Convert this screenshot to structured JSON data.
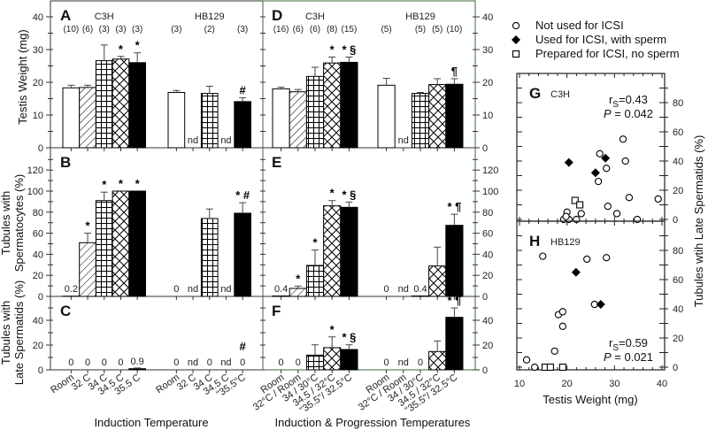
{
  "axis_titles": {
    "a_ylabel": "Testis Weight (mg)",
    "b_ylabel_1": "Tubules with",
    "b_ylabel_2": "Spermatocytes (%)",
    "c_ylabel_1": "Tubules with",
    "c_ylabel_2": "Late Spermatids (%)",
    "left_xlabel": "Induction Temperature",
    "mid_xlabel": "Induction & Progression Temperatures",
    "scatter_xlabel": "Testis Weight (mg)",
    "scatter_ylabel": "Tubules wtih Late Spermatids (%)"
  },
  "legend": [
    {
      "key": "not_used",
      "label": "Not used for ICSI"
    },
    {
      "key": "used",
      "label": "Used for ICSI, with sperm"
    },
    {
      "key": "prepared",
      "label": "Prepared for ICSI, no sperm"
    }
  ],
  "colors": {
    "bar_stroke": "#000000",
    "solid": "#000000",
    "frame_mid": "#3a6b3a"
  },
  "chart_data": [
    {
      "type": "bar",
      "panel": "A",
      "ylim": [
        0,
        40
      ],
      "yticks": [
        0,
        10,
        20,
        30,
        40
      ],
      "groups": [
        {
          "name": "C3H",
          "categories": [
            "Room",
            "32 C",
            "34 C",
            "34.5 C",
            "35.5 C"
          ],
          "bars": [
            {
              "n": "(10)",
              "value": 18.3,
              "err": 0.8,
              "fill": "open"
            },
            {
              "n": "(6)",
              "value": 18.4,
              "err": 0.7,
              "fill": "diag"
            },
            {
              "n": "(3)",
              "value": 26.6,
              "err": 4.8,
              "fill": "grid"
            },
            {
              "n": "(3)",
              "value": 27.1,
              "err": 0.8,
              "fill": "cross",
              "annot": "*"
            },
            {
              "n": "(3)",
              "value": 26.0,
              "err": 3.0,
              "fill": "solid",
              "annot": "*"
            }
          ]
        },
        {
          "name": "HB129",
          "categories": [
            "Room",
            "32 C",
            "34 C",
            "34.5 C",
            "\"35.5\"C"
          ],
          "bars": [
            {
              "n": "(3)",
              "value": 16.9,
              "err": 0.6,
              "fill": "open"
            },
            {
              "value": null,
              "label": "nd"
            },
            {
              "n": "(2)",
              "value": 16.6,
              "err": 2.2,
              "fill": "grid"
            },
            {
              "value": null,
              "label": "nd"
            },
            {
              "n": "(3)",
              "value": 14.1,
              "err": 1.2,
              "fill": "solid",
              "annot": "#"
            }
          ]
        }
      ]
    },
    {
      "type": "bar",
      "panel": "B",
      "ylim": [
        0,
        130
      ],
      "yticks": [
        0,
        20,
        40,
        60,
        80,
        100,
        120
      ],
      "groups": [
        {
          "name": "C3H",
          "bars": [
            {
              "value": 0.2,
              "err": 0,
              "fill": "open",
              "label": "0.2"
            },
            {
              "value": 51,
              "err": 9,
              "fill": "diag",
              "annot": "*"
            },
            {
              "value": 91,
              "err": 8,
              "fill": "grid",
              "annot": "*"
            },
            {
              "value": 100,
              "err": 0,
              "fill": "cross",
              "annot": "*"
            },
            {
              "value": 100,
              "err": 0,
              "fill": "solid",
              "annot": "*"
            }
          ]
        },
        {
          "name": "HB129",
          "bars": [
            {
              "value": 0,
              "err": 0,
              "fill": "open",
              "label": "0"
            },
            {
              "value": null,
              "label": "nd"
            },
            {
              "value": 74,
              "err": 9,
              "fill": "grid"
            },
            {
              "value": null,
              "label": "nd"
            },
            {
              "value": 79,
              "err": 10,
              "fill": "solid",
              "annot": "* #"
            }
          ]
        }
      ]
    },
    {
      "type": "bar",
      "panel": "C",
      "ylim": [
        0,
        55
      ],
      "yticks": [
        0,
        20,
        40
      ],
      "groups": [
        {
          "name": "C3H",
          "bars": [
            {
              "value": 0,
              "label": "0",
              "fill": "open"
            },
            {
              "value": 0,
              "label": "0",
              "fill": "diag"
            },
            {
              "value": 0,
              "label": "0",
              "fill": "grid"
            },
            {
              "value": 0,
              "label": "0",
              "fill": "cross"
            },
            {
              "value": 0.9,
              "err": 0.6,
              "label": "0.9",
              "fill": "solid"
            }
          ]
        },
        {
          "name": "HB129",
          "bars": [
            {
              "value": 0,
              "label": "0",
              "fill": "open"
            },
            {
              "value": null,
              "label": "nd"
            },
            {
              "value": 0,
              "label": "0",
              "fill": "grid"
            },
            {
              "value": null,
              "label": "nd"
            },
            {
              "value": 0,
              "label": "0",
              "fill": "solid",
              "annot": "#"
            }
          ]
        }
      ]
    },
    {
      "type": "bar",
      "panel": "D",
      "ylim": [
        0,
        40
      ],
      "yticks": [
        0,
        10,
        20,
        30,
        40
      ],
      "groups": [
        {
          "name": "C3H",
          "categories": [
            "Room",
            "32°C / Room",
            "34 / 30°C",
            "34.5 / 32°C",
            "\"35.5\"/ 32.5°C"
          ],
          "bars": [
            {
              "n": "(16)",
              "value": 18.0,
              "err": 0.5,
              "fill": "open"
            },
            {
              "n": "(6)",
              "value": 17.1,
              "err": 0.7,
              "fill": "diag"
            },
            {
              "n": "(6)",
              "value": 21.8,
              "err": 2.8,
              "fill": "grid"
            },
            {
              "n": "(8)",
              "value": 25.9,
              "err": 1.8,
              "fill": "cross",
              "annot": "*"
            },
            {
              "n": "(15)",
              "value": 26.1,
              "err": 1.6,
              "fill": "solid",
              "annot": "* §"
            }
          ]
        },
        {
          "name": "HB129",
          "categories": [
            "Room",
            "32°C / Room",
            "34 / 30°C",
            "34.5 / 32°C",
            "\"35.5\"/ 32.5°C"
          ],
          "bars": [
            {
              "n": "(5)",
              "value": 19.1,
              "err": 2.1,
              "fill": "open"
            },
            {
              "value": null,
              "label": "nd"
            },
            {
              "n": "(5)",
              "value": 16.6,
              "err": 0.3,
              "fill": "grid"
            },
            {
              "n": "(5)",
              "value": 19.3,
              "err": 1.8,
              "fill": "cross"
            },
            {
              "n": "(10)",
              "value": 19.4,
              "err": 1.7,
              "fill": "solid",
              "annot": "¶"
            }
          ]
        }
      ]
    },
    {
      "type": "bar",
      "panel": "E",
      "ylim": [
        0,
        130
      ],
      "yticks": [
        0,
        20,
        40,
        60,
        80,
        100,
        120
      ],
      "groups": [
        {
          "name": "C3H",
          "bars": [
            {
              "value": 0.4,
              "err": 0,
              "fill": "open",
              "label": "0.4"
            },
            {
              "value": 7.6,
              "err": 2.2,
              "fill": "diag",
              "annot": "*"
            },
            {
              "value": 29.4,
              "err": 14.6,
              "fill": "grid",
              "annot": "*"
            },
            {
              "value": 86,
              "err": 5,
              "fill": "cross",
              "annot": "*"
            },
            {
              "value": 84.6,
              "err": 5,
              "fill": "solid",
              "annot": "* §"
            }
          ]
        },
        {
          "name": "HB129",
          "bars": [
            {
              "value": 0,
              "fill": "open",
              "label": "0"
            },
            {
              "value": null,
              "label": "nd"
            },
            {
              "value": 0.4,
              "fill": "grid",
              "label": "0.4"
            },
            {
              "value": 28.9,
              "err": 17.9,
              "fill": "cross"
            },
            {
              "value": 67.5,
              "err": 10.5,
              "fill": "solid",
              "annot": "* ¶"
            }
          ]
        }
      ]
    },
    {
      "type": "bar",
      "panel": "F",
      "ylim": [
        0,
        55
      ],
      "yticks": [
        0,
        20,
        40
      ],
      "groups": [
        {
          "name": "C3H",
          "bars": [
            {
              "value": 0,
              "label": "0",
              "fill": "open"
            },
            {
              "value": 0,
              "label": "0",
              "fill": "diag"
            },
            {
              "value": 11.9,
              "err": 8.3,
              "fill": "grid"
            },
            {
              "value": 17.9,
              "err": 8.7,
              "fill": "cross",
              "annot": "*"
            },
            {
              "value": 16.4,
              "err": 3.8,
              "fill": "solid",
              "annot": "* §"
            }
          ]
        },
        {
          "name": "HB129",
          "bars": [
            {
              "value": 0,
              "label": "0",
              "fill": "open"
            },
            {
              "value": null,
              "label": "nd"
            },
            {
              "value": 0,
              "label": "0",
              "fill": "grid"
            },
            {
              "value": 14.8,
              "err": 8.5,
              "fill": "cross"
            },
            {
              "value": 42.4,
              "err": 7.6,
              "fill": "solid",
              "annot": "* ¶"
            }
          ]
        }
      ]
    },
    {
      "type": "scatter",
      "panel": "G",
      "strain": "C3H",
      "stat": "rS=0.43",
      "stat_r": "r",
      "stat_sub": "S",
      "stat_val": "=0.43",
      "p": "P",
      "p_val": " = 0.042",
      "xlim": [
        10,
        40
      ],
      "ylim": [
        0,
        100
      ],
      "yticks": [
        0,
        20,
        40,
        60,
        80
      ],
      "points": [
        {
          "x": 31.8,
          "y": 55,
          "kind": "not_used"
        },
        {
          "x": 26.9,
          "y": 45,
          "kind": "not_used"
        },
        {
          "x": 28.1,
          "y": 42,
          "kind": "used"
        },
        {
          "x": 20.4,
          "y": 39,
          "kind": "used"
        },
        {
          "x": 32.3,
          "y": 40,
          "kind": "not_used"
        },
        {
          "x": 28.3,
          "y": 35,
          "kind": "not_used"
        },
        {
          "x": 26.0,
          "y": 32,
          "kind": "used"
        },
        {
          "x": 26.6,
          "y": 26,
          "kind": "not_used"
        },
        {
          "x": 21.7,
          "y": 13,
          "kind": "prepared"
        },
        {
          "x": 22.7,
          "y": 10,
          "kind": "prepared"
        },
        {
          "x": 33.1,
          "y": 15,
          "kind": "not_used"
        },
        {
          "x": 39.2,
          "y": 14,
          "kind": "not_used"
        },
        {
          "x": 28.6,
          "y": 9,
          "kind": "not_used"
        },
        {
          "x": 30.5,
          "y": 4,
          "kind": "not_used"
        },
        {
          "x": 34.8,
          "y": 0,
          "kind": "not_used"
        },
        {
          "x": 20.0,
          "y": 5,
          "kind": "not_used"
        },
        {
          "x": 23.0,
          "y": 4,
          "kind": "not_used"
        },
        {
          "x": 19.3,
          "y": 0,
          "kind": "not_used"
        },
        {
          "x": 20.4,
          "y": 0,
          "kind": "not_used"
        },
        {
          "x": 22.0,
          "y": 0,
          "kind": "not_used"
        },
        {
          "x": 19.8,
          "y": 2,
          "kind": "not_used"
        }
      ]
    },
    {
      "type": "scatter",
      "panel": "H",
      "strain": "HB129",
      "stat": "rS=0.59",
      "stat_r": "r",
      "stat_sub": "S",
      "stat_val": "=0.59",
      "p": "P",
      "p_val": " = 0.021",
      "xlim": [
        10,
        40
      ],
      "xticks": [
        10,
        20,
        30,
        40
      ],
      "ylim": [
        0,
        100
      ],
      "yticks": [
        0,
        20,
        40,
        60,
        80
      ],
      "points": [
        {
          "x": 14.9,
          "y": 76,
          "kind": "not_used"
        },
        {
          "x": 24.2,
          "y": 74,
          "kind": "not_used"
        },
        {
          "x": 28.3,
          "y": 75,
          "kind": "not_used"
        },
        {
          "x": 21.9,
          "y": 65,
          "kind": "used"
        },
        {
          "x": 25.8,
          "y": 43,
          "kind": "not_used"
        },
        {
          "x": 27.1,
          "y": 43,
          "kind": "used"
        },
        {
          "x": 18.2,
          "y": 36,
          "kind": "not_used"
        },
        {
          "x": 19.1,
          "y": 38,
          "kind": "not_used"
        },
        {
          "x": 19.1,
          "y": 28,
          "kind": "not_used"
        },
        {
          "x": 17.4,
          "y": 11,
          "kind": "not_used"
        },
        {
          "x": 11.5,
          "y": 5,
          "kind": "not_used"
        },
        {
          "x": 13.2,
          "y": 0,
          "kind": "not_used"
        },
        {
          "x": 15.4,
          "y": 0,
          "kind": "prepared"
        },
        {
          "x": 16.5,
          "y": 0,
          "kind": "prepared"
        },
        {
          "x": 19.1,
          "y": 0,
          "kind": "prepared"
        }
      ]
    }
  ]
}
